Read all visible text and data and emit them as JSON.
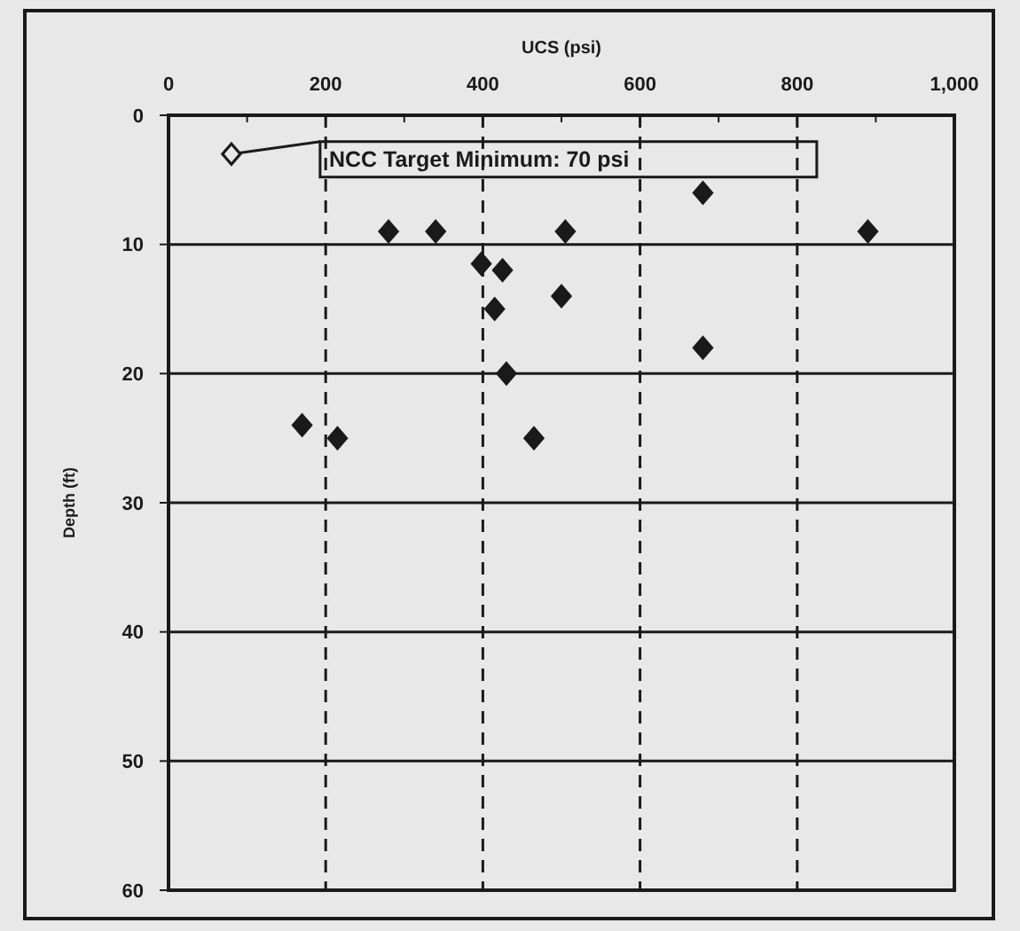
{
  "chart_data": {
    "type": "scatter",
    "xlabel": "UCS (psi)",
    "ylabel": "Depth (ft)",
    "xlim": [
      0,
      1000
    ],
    "ylim": [
      60,
      0
    ],
    "xticks": [
      0,
      {
        "value": 100,
        "label": null
      },
      200,
      {
        "value": 300,
        "label": null
      },
      400,
      {
        "value": 500,
        "label": null
      },
      600,
      {
        "value": 700,
        "label": null
      },
      800,
      {
        "value": 900,
        "label": null
      },
      {
        "value": 1000,
        "label": "1,000"
      }
    ],
    "yticks": [
      0,
      10,
      20,
      30,
      40,
      50,
      60
    ],
    "grid": true,
    "marker": "diamond",
    "series": [
      {
        "color": "#1a1a1a",
        "x": [
          280,
          340,
          505,
          890,
          680,
          398,
          425,
          500,
          415,
          680,
          430,
          170,
          215,
          465
        ],
        "values": [
          9,
          9,
          9,
          9,
          6,
          11.5,
          12,
          14,
          15,
          18,
          20,
          24,
          25,
          25
        ]
      },
      {
        "color": "#e8e8e8",
        "x": [
          80
        ],
        "values": [
          3
        ]
      }
    ],
    "annotations": [
      {
        "text": "NCC Target Minimum: 70 psi",
        "x": 80,
        "y": 3
      }
    ]
  }
}
